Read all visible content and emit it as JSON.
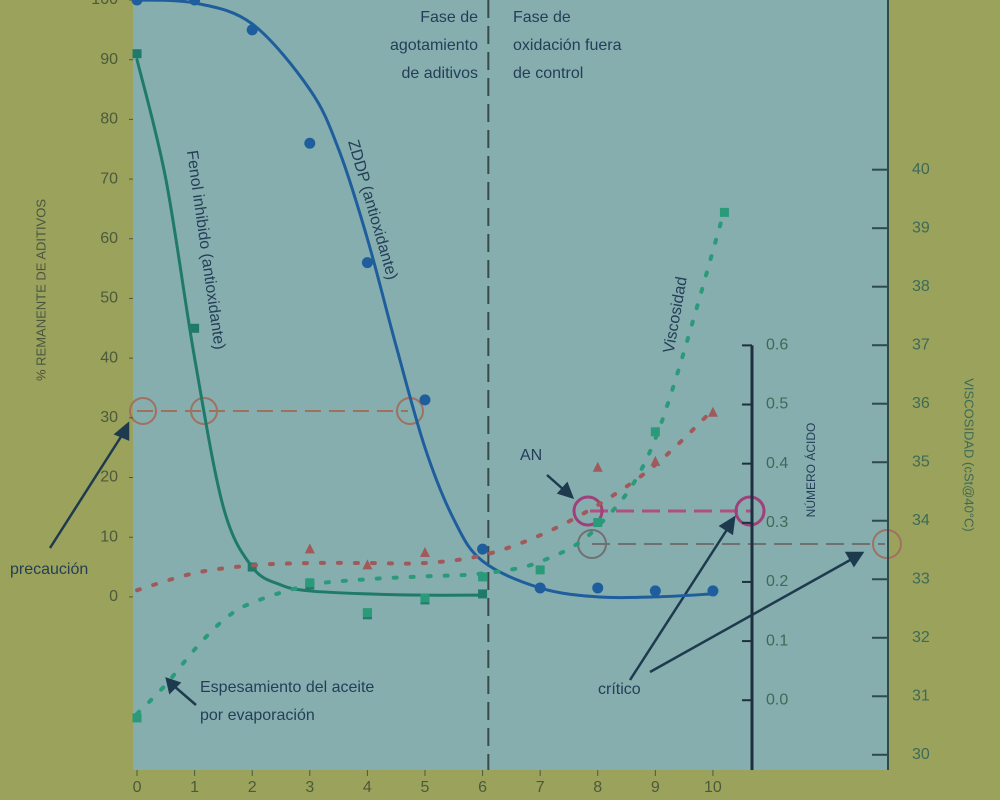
{
  "chart_data": {
    "type": "line",
    "y_title": "% REMANENTE DE ADITIVOS",
    "y2_title": "VISCOSIDAD (cSt@40°C)",
    "y3_title": "NÚMERO ÁCIDO",
    "xlim": [
      -0.07,
      13.04
    ],
    "xticks": [
      0,
      1,
      2,
      3,
      4,
      5,
      6,
      7,
      8,
      9,
      10
    ],
    "ylim": [
      -29,
      100
    ],
    "yticks": [
      0,
      10,
      20,
      30,
      40,
      50,
      60,
      70,
      80,
      90,
      100
    ],
    "y2lim": [
      29.74,
      42.9
    ],
    "y2ticks": [
      30,
      31,
      32,
      33,
      34,
      35,
      36,
      37,
      38,
      39,
      40
    ],
    "y3lim": [
      -0.118,
      1.184
    ],
    "y3ticks": [
      {
        "value": 0,
        "label": "0.0"
      },
      0.1,
      0.2,
      0.3,
      0.4,
      0.5,
      0.6
    ],
    "annotations": {
      "phase1": [
        "Fase de",
        "agotamiento",
        "de aditivos"
      ],
      "phase2": [
        "Fase de",
        "oxidación fuera",
        "de control"
      ],
      "fenol": "Fenol inhibido (antioxidante)",
      "zddp": "ZDDP (antioxidante)",
      "visc": "Viscosidad",
      "an": "AN",
      "caution": "precaución",
      "thickening": [
        "Espesamiento del aceite",
        "por evaporación"
      ],
      "critical": "crítico"
    },
    "phase_boundary": 6.1,
    "series": [
      {
        "name": "ZDDP",
        "color": "#1f5e9c",
        "marker": "circle",
        "line_style": "solid",
        "axis": "y",
        "x": [
          0,
          1,
          2,
          3,
          4,
          5,
          6,
          7,
          8,
          9,
          10
        ],
        "values": [
          100,
          100,
          95,
          76,
          56,
          33,
          8,
          1.5,
          1.5,
          1,
          1
        ],
        "curve": {
          "x": [
            0,
            1,
            2,
            3,
            3.5,
            4,
            4.5,
            5,
            5.5,
            6,
            7,
            8,
            9,
            10
          ],
          "values": [
            100,
            99.5,
            96,
            85,
            75,
            60,
            42,
            25,
            13,
            6,
            1.5,
            0,
            0,
            0.5
          ]
        }
      },
      {
        "name": "Fenol inhibido",
        "color": "#1f7a6a",
        "marker": "square",
        "line_style": "solid",
        "axis": "y",
        "x": [
          0,
          1,
          2,
          3,
          4,
          5,
          6
        ],
        "values": [
          91,
          45,
          5,
          2,
          -3,
          -0.5,
          0.5
        ],
        "curve": {
          "x": [
            0,
            0.5,
            1,
            1.5,
            2,
            2.5,
            3,
            4,
            5,
            6
          ],
          "values": [
            90,
            70,
            40,
            15,
            5,
            2,
            1,
            0.5,
            0.3,
            0.3
          ]
        }
      },
      {
        "name": "Viscosidad",
        "color": "#2a9a7a",
        "marker": "square",
        "line_style": "dotted",
        "axis": "y2",
        "x": [
          0,
          3,
          4,
          5,
          6,
          7,
          8,
          9,
          10.2
        ],
        "values": [
          30.63,
          32.94,
          32.43,
          32.68,
          33.04,
          33.16,
          33.97,
          35.52,
          39.27
        ],
        "curve": {
          "x": [
            0,
            0.5,
            1,
            1.5,
            2,
            3,
            4,
            5,
            6,
            7,
            8,
            9,
            10.2
          ],
          "values": [
            30.7,
            31.2,
            31.8,
            32.3,
            32.6,
            32.9,
            33.0,
            33.05,
            33.1,
            33.3,
            33.9,
            35.4,
            39.3
          ]
        }
      },
      {
        "name": "AN",
        "color": "#a05a5a",
        "marker": "triangle",
        "line_style": "dotted",
        "axis": "y3",
        "x": [
          3,
          4,
          5,
          8,
          9,
          10
        ],
        "values": [
          0.255,
          0.228,
          0.249,
          0.393,
          0.403,
          0.486
        ],
        "curve": {
          "x": [
            0,
            1,
            2,
            3,
            4,
            5,
            6,
            7,
            8,
            9,
            10
          ],
          "values": [
            0.186,
            0.215,
            0.228,
            0.232,
            0.232,
            0.232,
            0.245,
            0.279,
            0.33,
            0.398,
            0.491
          ]
        }
      }
    ]
  }
}
